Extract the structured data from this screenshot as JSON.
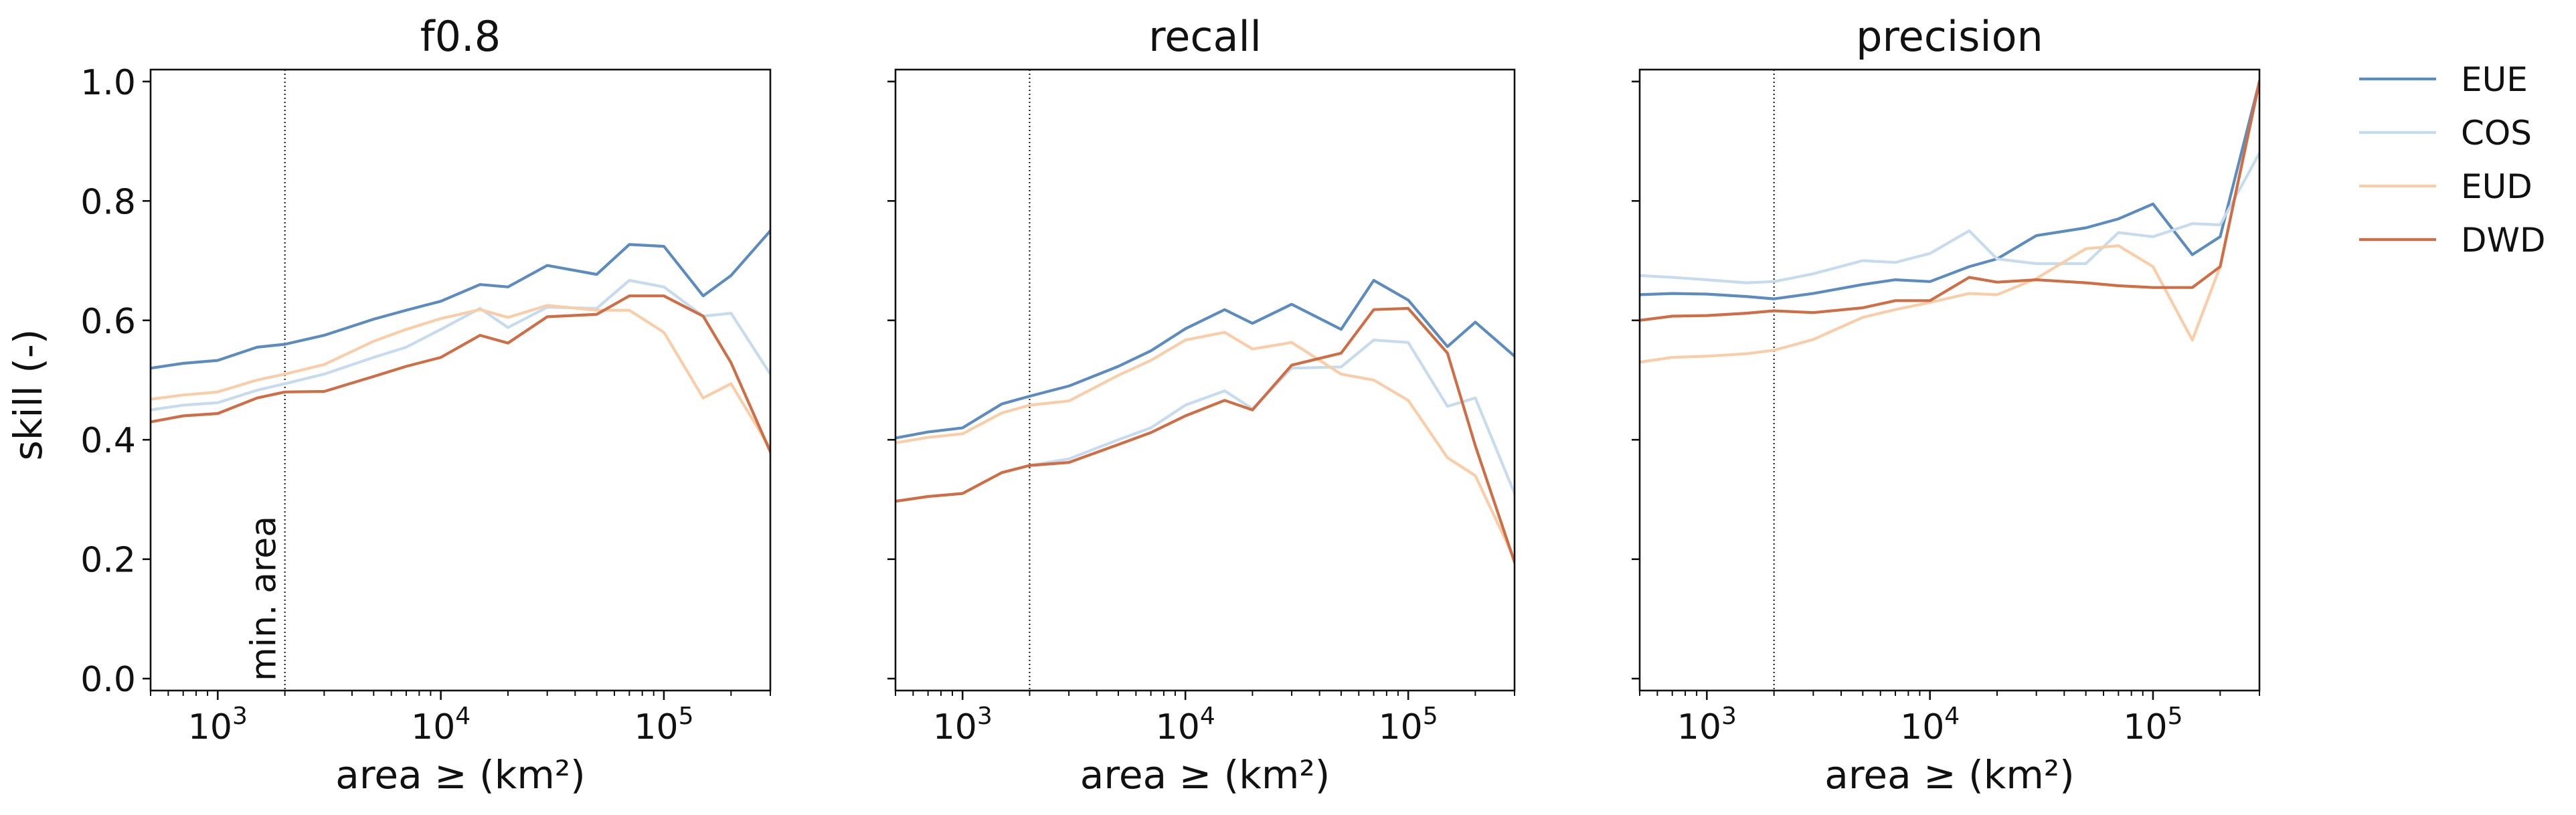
{
  "figure": {
    "ylabel": "skill (-)",
    "xlabel": "area ≥ (km²)",
    "legend_position": "right-outside-top",
    "legend": [
      {
        "name": "EUE",
        "color": "#5b8bbf"
      },
      {
        "name": "COS",
        "color": "#c6dbed"
      },
      {
        "name": "EUD",
        "color": "#f9cda8"
      },
      {
        "name": "DWD",
        "color": "#cf6d44"
      }
    ],
    "min_area_label": "min. area"
  },
  "chart_data": [
    {
      "type": "line",
      "title": "f0.8",
      "xscale": "log",
      "xlim": [
        500,
        300000
      ],
      "ylim": [
        -0.02,
        1.02
      ],
      "x_ticks": [
        1000,
        10000,
        100000
      ],
      "x_tick_labels": [
        {
          "base": "10",
          "exp": "3"
        },
        {
          "base": "10",
          "exp": "4"
        },
        {
          "base": "10",
          "exp": "5"
        }
      ],
      "y_ticks": [
        0.0,
        0.2,
        0.4,
        0.6,
        0.8,
        1.0
      ],
      "y_tick_labels": [
        "0.0",
        "0.2",
        "0.4",
        "0.6",
        "0.8",
        "1.0"
      ],
      "min_area": 2000,
      "x": [
        500,
        700,
        1000,
        1500,
        2000,
        3000,
        5000,
        7000,
        10000,
        15000,
        20000,
        30000,
        50000,
        70000,
        100000,
        150000,
        200000,
        300000
      ],
      "series": [
        {
          "name": "EUE",
          "values": [
            0.52,
            0.528,
            0.533,
            0.555,
            0.56,
            0.575,
            0.602,
            0.617,
            0.632,
            0.66,
            0.656,
            0.692,
            0.677,
            0.727,
            0.724,
            0.641,
            0.675,
            0.75
          ]
        },
        {
          "name": "COS",
          "values": [
            0.45,
            0.458,
            0.462,
            0.483,
            0.494,
            0.51,
            0.538,
            0.555,
            0.585,
            0.62,
            0.588,
            0.622,
            0.62,
            0.667,
            0.656,
            0.607,
            0.612,
            0.51
          ]
        },
        {
          "name": "EUD",
          "values": [
            0.468,
            0.475,
            0.48,
            0.5,
            0.51,
            0.526,
            0.565,
            0.585,
            0.603,
            0.618,
            0.605,
            0.625,
            0.617,
            0.617,
            0.58,
            0.47,
            0.494,
            0.385
          ]
        },
        {
          "name": "DWD",
          "values": [
            0.43,
            0.44,
            0.444,
            0.47,
            0.48,
            0.481,
            0.506,
            0.523,
            0.538,
            0.575,
            0.562,
            0.606,
            0.61,
            0.641,
            0.641,
            0.607,
            0.529,
            0.38
          ]
        }
      ]
    },
    {
      "type": "line",
      "title": "recall",
      "xscale": "log",
      "xlim": [
        500,
        300000
      ],
      "ylim": [
        -0.02,
        1.02
      ],
      "x_ticks": [
        1000,
        10000,
        100000
      ],
      "x_tick_labels": [
        {
          "base": "10",
          "exp": "3"
        },
        {
          "base": "10",
          "exp": "4"
        },
        {
          "base": "10",
          "exp": "5"
        }
      ],
      "y_ticks": [
        0.0,
        0.2,
        0.4,
        0.6,
        0.8,
        1.0
      ],
      "min_area": 2000,
      "x": [
        500,
        700,
        1000,
        1500,
        2000,
        3000,
        5000,
        7000,
        10000,
        15000,
        20000,
        30000,
        50000,
        70000,
        100000,
        150000,
        200000,
        300000
      ],
      "series": [
        {
          "name": "EUE",
          "values": [
            0.403,
            0.413,
            0.42,
            0.46,
            0.473,
            0.49,
            0.523,
            0.549,
            0.586,
            0.618,
            0.595,
            0.627,
            0.585,
            0.667,
            0.634,
            0.556,
            0.597,
            0.54
          ]
        },
        {
          "name": "COS",
          "values": [
            0.297,
            0.305,
            0.31,
            0.345,
            0.357,
            0.368,
            0.4,
            0.42,
            0.458,
            0.482,
            0.452,
            0.52,
            0.522,
            0.567,
            0.563,
            0.456,
            0.47,
            0.31
          ]
        },
        {
          "name": "EUD",
          "values": [
            0.395,
            0.404,
            0.41,
            0.445,
            0.458,
            0.465,
            0.508,
            0.533,
            0.567,
            0.58,
            0.552,
            0.563,
            0.51,
            0.5,
            0.466,
            0.37,
            0.34,
            0.2
          ]
        },
        {
          "name": "DWD",
          "values": [
            0.297,
            0.305,
            0.31,
            0.345,
            0.357,
            0.362,
            0.392,
            0.412,
            0.44,
            0.466,
            0.45,
            0.525,
            0.545,
            0.618,
            0.62,
            0.545,
            0.39,
            0.195
          ]
        }
      ]
    },
    {
      "type": "line",
      "title": "precision",
      "xscale": "log",
      "xlim": [
        500,
        300000
      ],
      "ylim": [
        -0.02,
        1.02
      ],
      "x_ticks": [
        1000,
        10000,
        100000
      ],
      "x_tick_labels": [
        {
          "base": "10",
          "exp": "3"
        },
        {
          "base": "10",
          "exp": "4"
        },
        {
          "base": "10",
          "exp": "5"
        }
      ],
      "y_ticks": [
        0.0,
        0.2,
        0.4,
        0.6,
        0.8,
        1.0
      ],
      "min_area": 2000,
      "x": [
        500,
        700,
        1000,
        1500,
        2000,
        3000,
        5000,
        7000,
        10000,
        15000,
        20000,
        30000,
        50000,
        70000,
        100000,
        150000,
        200000,
        300000
      ],
      "series": [
        {
          "name": "EUE",
          "values": [
            0.643,
            0.645,
            0.644,
            0.64,
            0.636,
            0.645,
            0.66,
            0.668,
            0.665,
            0.69,
            0.703,
            0.742,
            0.755,
            0.77,
            0.795,
            0.71,
            0.74,
            1.0
          ]
        },
        {
          "name": "COS",
          "values": [
            0.675,
            0.672,
            0.668,
            0.663,
            0.665,
            0.678,
            0.7,
            0.697,
            0.712,
            0.75,
            0.703,
            0.695,
            0.695,
            0.747,
            0.74,
            0.762,
            0.76,
            0.88
          ]
        },
        {
          "name": "EUD",
          "values": [
            0.53,
            0.538,
            0.54,
            0.544,
            0.55,
            0.568,
            0.605,
            0.618,
            0.63,
            0.645,
            0.643,
            0.67,
            0.72,
            0.725,
            0.69,
            0.567,
            0.69,
            1.0
          ]
        },
        {
          "name": "DWD",
          "values": [
            0.6,
            0.607,
            0.608,
            0.612,
            0.616,
            0.613,
            0.621,
            0.633,
            0.633,
            0.672,
            0.664,
            0.668,
            0.663,
            0.658,
            0.655,
            0.655,
            0.69,
            1.0
          ]
        }
      ]
    }
  ]
}
